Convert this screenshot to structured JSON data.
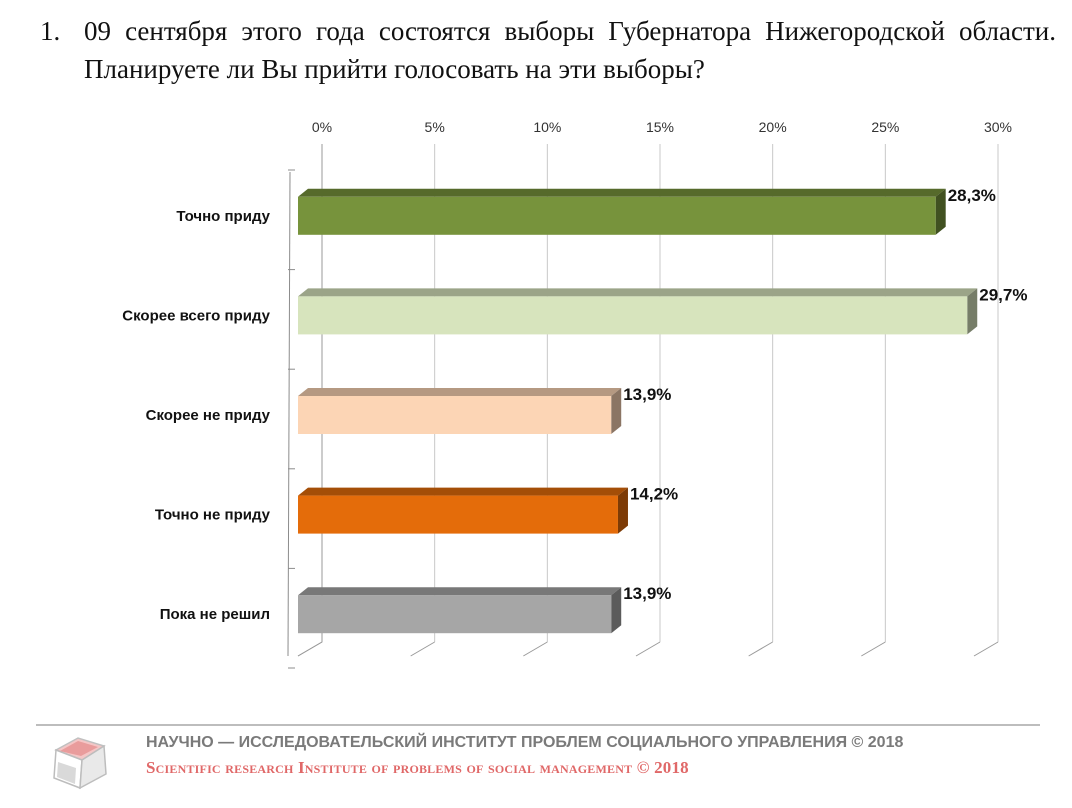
{
  "question": {
    "number": "1.",
    "text": "09 сентября этого года состоятся выборы Губернатора Нижегородской области. Планируете ли Вы прийти голосовать на эти выборы?"
  },
  "chart_data": {
    "type": "bar",
    "orientation": "horizontal",
    "three_d": true,
    "categories": [
      "Точно приду",
      "Скорее всего приду",
      "Скорее не приду",
      "Точно не приду",
      "Пока не решил"
    ],
    "values": [
      28.3,
      29.7,
      13.9,
      14.2,
      13.9
    ],
    "value_labels": [
      "28,3%",
      "29,7%",
      "13,9%",
      "14,2%",
      "13,9%"
    ],
    "bar_colors": [
      "#77933c",
      "#d7e4bd",
      "#fcd5b5",
      "#e46c0a",
      "#a6a6a6"
    ],
    "x_ticks": [
      0,
      5,
      10,
      15,
      20,
      25,
      30
    ],
    "x_tick_labels": [
      "0%",
      "5%",
      "10%",
      "15%",
      "20%",
      "25%",
      "30%"
    ],
    "xlim": [
      0,
      30
    ],
    "x_axis_position": "top",
    "grid": true
  },
  "footer": {
    "ru": "НАУЧНО — ИССЛЕДОВАТЕЛЬСКИЙ ИНСТИТУТ ПРОБЛЕМ СОЦИАЛЬНОГО УПРАВЛЕНИЯ © 2018",
    "en": "Scientific research Institute of problems of social management © 2018",
    "logo_icon": "cube-logo-icon"
  }
}
